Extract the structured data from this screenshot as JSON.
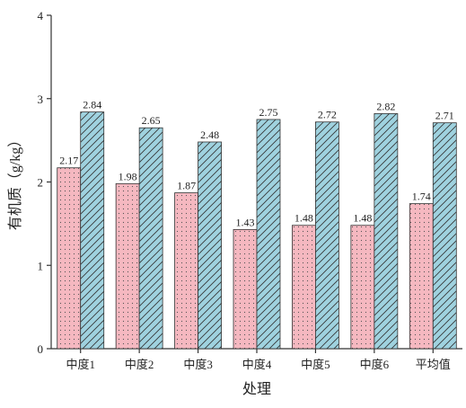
{
  "chart_data": {
    "type": "bar",
    "y_label": "有机质（g/kg）",
    "x_label": "处理",
    "categories": [
      "中度1",
      "中度2",
      "中度3",
      "中度4",
      "中度5",
      "中度6",
      "平均值"
    ],
    "series": [
      {
        "color": "#f5b8c0",
        "pattern": "dots",
        "values": [
          2.17,
          1.98,
          1.87,
          1.43,
          1.48,
          1.48,
          1.74
        ]
      },
      {
        "color": "#9fd2df",
        "pattern": "hatch",
        "values": [
          2.84,
          2.65,
          2.48,
          2.75,
          2.72,
          2.82,
          2.71
        ]
      }
    ],
    "ylim": [
      0,
      4
    ],
    "yticks": [
      0,
      1,
      2,
      3,
      4
    ],
    "grid": false
  }
}
